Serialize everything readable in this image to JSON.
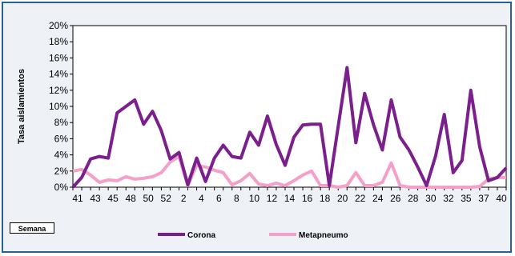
{
  "chart_data": {
    "type": "line",
    "ylabel": "Tasa aislamientos",
    "xlabel": "Semana",
    "ylim": [
      0,
      20
    ],
    "y_ticks": [
      "0%",
      "2%",
      "4%",
      "6%",
      "8%",
      "10%",
      "12%",
      "14%",
      "16%",
      "18%",
      "20%"
    ],
    "x_tick_labels": [
      "41",
      "43",
      "45",
      "48",
      "50",
      "52",
      "2",
      "4",
      "6",
      "8",
      "10",
      "12",
      "14",
      "16",
      "18",
      "20",
      "22",
      "24",
      "26",
      "28",
      "30",
      "32",
      "35",
      "37",
      "40"
    ],
    "grid": false,
    "legend_position": "bottom",
    "series": [
      {
        "name": "Corona",
        "color": "#7b1f8c",
        "values": [
          0,
          1.2,
          3.5,
          3.8,
          3.6,
          9.2,
          10,
          10.8,
          7.8,
          9.4,
          7,
          3.5,
          4.3,
          0.3,
          3.6,
          0.7,
          3.6,
          5.2,
          3.8,
          3.6,
          6.8,
          5.2,
          8.8,
          5.3,
          2.7,
          6.2,
          7.7,
          7.8,
          7.8,
          0.2,
          7.5,
          14.8,
          5.5,
          11.6,
          7.7,
          4.6,
          10.8,
          6.2,
          4.6,
          2.5,
          0.2,
          3.8,
          9,
          1.8,
          3.3,
          12,
          5,
          0.8,
          1.2,
          2.4
        ]
      },
      {
        "name": "Metapneumo",
        "color": "#f4a0c8",
        "values": [
          2,
          2.2,
          1.5,
          0.6,
          0.9,
          0.8,
          1.3,
          1,
          1.1,
          1.3,
          1.8,
          3.1,
          3.8,
          0.2,
          2.7,
          2.5,
          2.1,
          1.8,
          0.3,
          0.8,
          1.7,
          0.4,
          0.2,
          0.5,
          0.2,
          0.8,
          1.5,
          2,
          0.2,
          0.2,
          0,
          0.2,
          1.8,
          0.2,
          0.2,
          0.6,
          3,
          0.2,
          0,
          0,
          0,
          0,
          0,
          0,
          0,
          0,
          0.1,
          1,
          1.2,
          1.2
        ]
      }
    ]
  }
}
